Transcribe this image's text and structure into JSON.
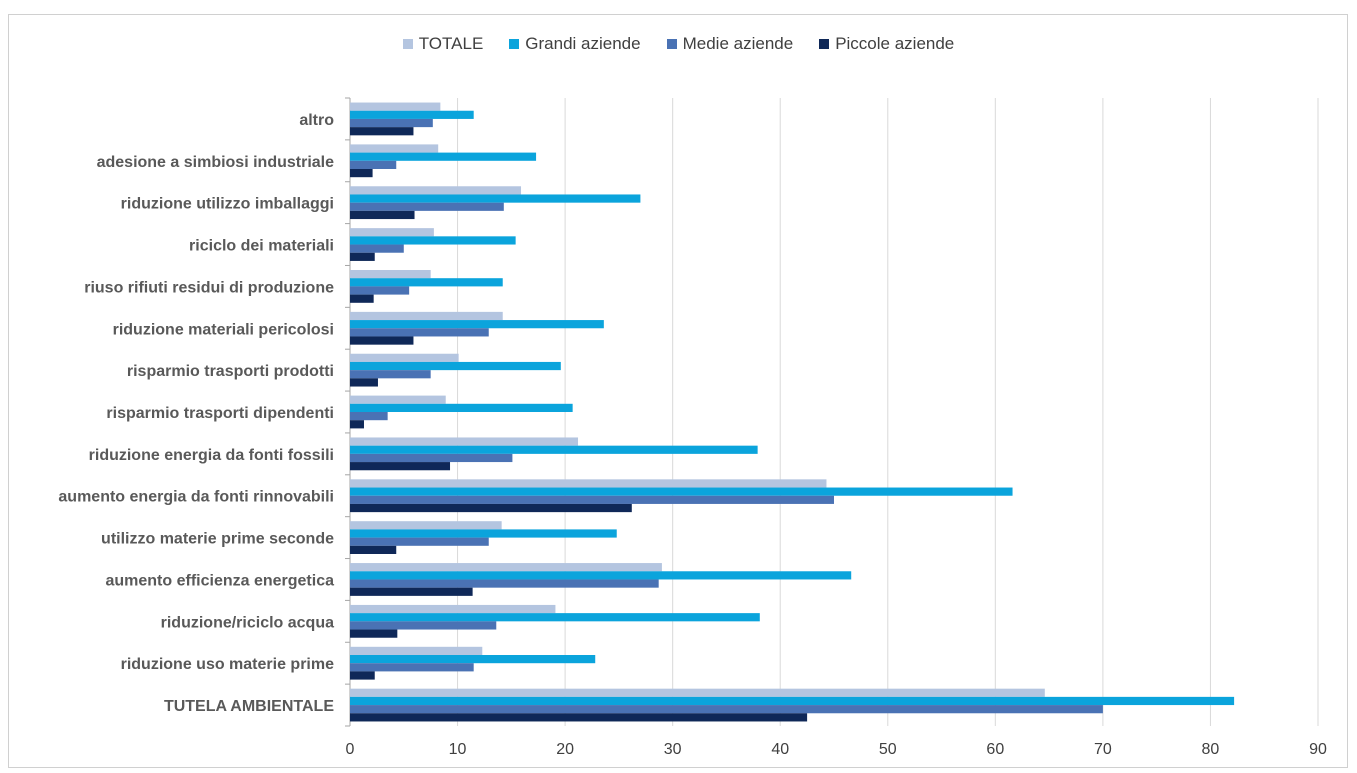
{
  "chart_data": {
    "type": "bar",
    "orientation": "horizontal",
    "title": "",
    "xlabel": "",
    "ylabel": "",
    "xlim": [
      0,
      90
    ],
    "xticks": [
      0,
      10,
      20,
      30,
      40,
      50,
      60,
      70,
      80,
      90
    ],
    "grid": true,
    "legend_position": "top-center",
    "categories": [
      "altro",
      "adesione a simbiosi industriale",
      "riduzione utilizzo imballaggi",
      "riciclo dei materiali",
      "riuso rifiuti residui di produzione",
      "riduzione materiali pericolosi",
      "risparmio trasporti prodotti",
      "risparmio trasporti dipendenti",
      "riduzione energia da fonti fossili",
      "aumento  energia da fonti rinnovabili",
      "utilizzo materie prime seconde",
      "aumento efficienza energetica",
      "riduzione/riciclo acqua",
      "riduzione uso materie prime",
      "TUTELA AMBIENTALE"
    ],
    "series": [
      {
        "name": "TOTALE",
        "color": "#b4c5e0",
        "values": [
          8.4,
          8.2,
          15.9,
          7.8,
          7.5,
          14.2,
          10.1,
          8.9,
          21.2,
          44.3,
          14.1,
          29.0,
          19.1,
          12.3,
          64.6
        ]
      },
      {
        "name": "Grandi aziende",
        "color": "#0ba4dc",
        "values": [
          11.5,
          17.3,
          27.0,
          15.4,
          14.2,
          23.6,
          19.6,
          20.7,
          37.9,
          61.6,
          24.8,
          46.6,
          38.1,
          22.8,
          82.2
        ]
      },
      {
        "name": "Medie aziende",
        "color": "#4a72b4",
        "values": [
          7.7,
          4.3,
          14.3,
          5.0,
          5.5,
          12.9,
          7.5,
          3.5,
          15.1,
          45.0,
          12.9,
          28.7,
          13.6,
          11.5,
          70.0
        ]
      },
      {
        "name": "Piccole aziende",
        "color": "#0f2858",
        "values": [
          5.9,
          2.1,
          6.0,
          2.3,
          2.2,
          5.9,
          2.6,
          1.3,
          9.3,
          26.2,
          4.3,
          11.4,
          4.4,
          2.3,
          42.5
        ]
      }
    ]
  }
}
